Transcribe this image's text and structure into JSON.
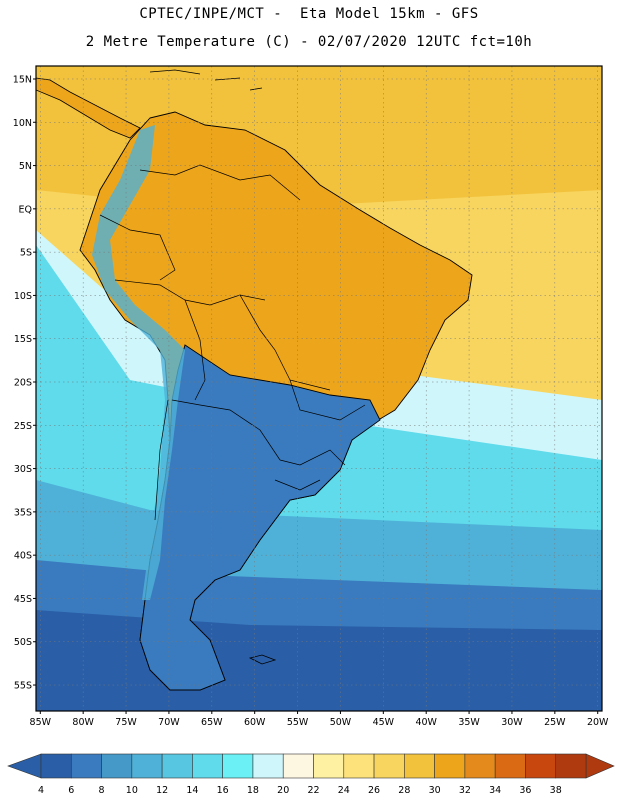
{
  "title": {
    "line1": "CPTEC/INPE/MCT -  Eta Model 15km - GFS",
    "line2": "2 Metre Temperature (C) - 02/07/2020 12UTC fct=10h"
  },
  "axes": {
    "lat_labels": [
      "15N",
      "10N",
      "5N",
      "EQ",
      "5S",
      "10S",
      "15S",
      "20S",
      "25S",
      "30S",
      "35S",
      "40S",
      "45S",
      "50S",
      "55S"
    ],
    "lat_values": [
      15,
      10,
      5,
      0,
      -5,
      -10,
      -15,
      -20,
      -25,
      -30,
      -35,
      -40,
      -45,
      -50,
      -55
    ],
    "lon_labels": [
      "85W",
      "80W",
      "75W",
      "70W",
      "65W",
      "60W",
      "55W",
      "50W",
      "45W",
      "40W",
      "35W",
      "30W",
      "25W",
      "20W"
    ],
    "lon_values": [
      -85,
      -80,
      -75,
      -70,
      -65,
      -60,
      -55,
      -50,
      -45,
      -40,
      -35,
      -30,
      -25,
      -20
    ],
    "lat_range": [
      -58,
      16.5
    ],
    "lon_range": [
      -85.5,
      -19.5
    ]
  },
  "colorbar": {
    "labels": [
      "4",
      "6",
      "8",
      "10",
      "12",
      "14",
      "16",
      "18",
      "20",
      "22",
      "24",
      "26",
      "28",
      "30",
      "32",
      "34",
      "36",
      "38"
    ],
    "colors": [
      "#2a5fa8",
      "#3a7bbf",
      "#4499c9",
      "#4fb1d8",
      "#57c6e1",
      "#5fdbeb",
      "#6af0f5",
      "#cff6fb",
      "#fdf6e0",
      "#fef2a2",
      "#fde27c",
      "#f8d55e",
      "#f2c23d",
      "#eda51b",
      "#e48a1c",
      "#db6a14",
      "#c7470f",
      "#b03a10"
    ],
    "low_arrow_color": "#2a5fa8",
    "high_arrow_color": "#b03a10"
  },
  "field_colors": {
    "ocean_deep_south": "#2a5fa8",
    "ocean_south_band": "#3a7bbf",
    "ocean_mid_band": "#4fb1d8",
    "ocean_cyan_band": "#5fdbeb",
    "ocean_light": "#cff6fb",
    "ocean_warm_yellow": "#f8d55e",
    "ocean_tropical": "#f2c23d",
    "land_warm": "#eda51b",
    "land_cold": "#3a7bbf",
    "andes_cold": "#4fb1d8",
    "border": "#000000"
  }
}
